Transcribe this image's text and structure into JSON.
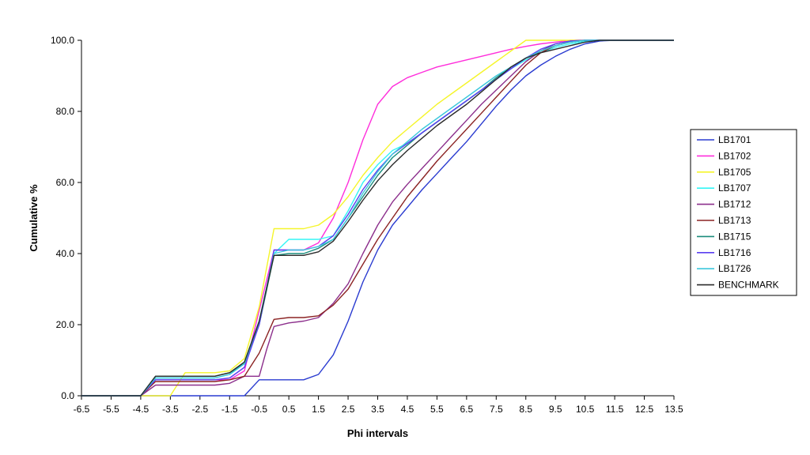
{
  "chart_data": {
    "type": "line",
    "title": "",
    "xlabel": "Phi intervals",
    "ylabel": "Cumulative %",
    "xlim": [
      -6.5,
      13.5
    ],
    "ylim": [
      0,
      100
    ],
    "x_ticks": [
      -6.5,
      -5.5,
      -4.5,
      -3.5,
      -2.5,
      -1.5,
      -0.5,
      0.5,
      1.5,
      2.5,
      3.5,
      4.5,
      5.5,
      6.5,
      7.5,
      8.5,
      9.5,
      10.5,
      11.5,
      12.5,
      13.5
    ],
    "x_tick_labels": [
      "-6.5",
      "-5.5",
      "-4.5",
      "-3.5",
      "-2.5",
      "-1.5",
      "-0.5",
      "0.5",
      "1.5",
      "2.5",
      "3.5",
      "4.5",
      "5.5",
      "6.5",
      "7.5",
      "8.5",
      "9.5",
      "10.5",
      "11.5",
      "12.5",
      "13.5"
    ],
    "y_ticks": [
      0,
      20,
      40,
      60,
      80,
      100
    ],
    "y_tick_labels": [
      "0.0",
      "20.0",
      "40.0",
      "60.0",
      "80.0",
      "100.0"
    ],
    "grid": false,
    "legend_position": "right",
    "series": [
      {
        "name": "LB1701",
        "color": "#2a3bd0",
        "x": [
          -6.5,
          -5,
          -4.5,
          -4,
          -3.5,
          -3,
          -2.5,
          -2,
          -1.5,
          -1,
          -0.5,
          0,
          0.5,
          1,
          1.5,
          2,
          2.5,
          3,
          3.5,
          4,
          4.5,
          5,
          5.5,
          6,
          6.5,
          7,
          7.5,
          8,
          8.5,
          9,
          9.5,
          10,
          10.5,
          11,
          11.5,
          12,
          12.5,
          13,
          13.5
        ],
        "y": [
          0,
          0,
          0,
          0,
          0,
          0,
          0,
          0,
          0,
          0,
          4.5,
          4.5,
          4.5,
          4.5,
          6,
          11.5,
          21,
          32,
          41,
          48,
          53,
          58,
          62.5,
          67,
          71.5,
          76.5,
          81.5,
          86,
          90,
          93,
          95.5,
          97.5,
          99,
          99.8,
          100,
          100,
          100,
          100,
          100
        ]
      },
      {
        "name": "LB1702",
        "color": "#ff2ddb",
        "x": [
          -6.5,
          -4.5,
          -4,
          -3.5,
          -3,
          -2.5,
          -2,
          -1.5,
          -1,
          -0.5,
          0,
          0.5,
          1,
          1.5,
          2,
          2.5,
          3,
          3.5,
          4,
          4.5,
          5,
          5.5,
          6,
          6.5,
          7,
          7.5,
          8,
          8.5,
          9,
          9.5,
          10,
          10.5,
          11,
          11.5,
          12,
          12.5,
          13,
          13.5
        ],
        "y": [
          0,
          0,
          4.5,
          4.5,
          4.5,
          4.5,
          4.5,
          4.5,
          7,
          24,
          41,
          41,
          41,
          43,
          50,
          60,
          72,
          82,
          87,
          89.5,
          91,
          92.5,
          93.5,
          94.5,
          95.5,
          96.5,
          97.5,
          98.3,
          99,
          99.5,
          100,
          100,
          100,
          100,
          100,
          100,
          100,
          100
        ]
      },
      {
        "name": "LB1705",
        "color": "#f5f52a",
        "x": [
          -6.5,
          -4.5,
          -4,
          -3.5,
          -3,
          -2.5,
          -2,
          -1.5,
          -1,
          -0.5,
          0,
          0.5,
          1,
          1.5,
          2,
          2.5,
          3,
          3.5,
          4,
          4.5,
          5,
          5.5,
          6,
          6.5,
          7,
          7.5,
          8,
          8.5,
          9,
          9.5,
          10,
          10.5,
          11,
          11.5,
          12,
          12.5,
          13,
          13.5
        ],
        "y": [
          0,
          0,
          0,
          0,
          6.5,
          6.5,
          6.5,
          7,
          10.5,
          25,
          47,
          47,
          47,
          48,
          51,
          56,
          62,
          67,
          71.5,
          75,
          78.5,
          82,
          85,
          88,
          91,
          94,
          97,
          100,
          100,
          100,
          100,
          100,
          100,
          100,
          100,
          100,
          100,
          100
        ]
      },
      {
        "name": "LB1707",
        "color": "#33f5f5",
        "x": [
          -6.5,
          -4.5,
          -4,
          -3.5,
          -3,
          -2.5,
          -2,
          -1.5,
          -1,
          -0.5,
          0,
          0.5,
          1,
          1.5,
          2,
          2.5,
          3,
          3.5,
          4,
          4.5,
          5,
          5.5,
          6,
          6.5,
          7,
          7.5,
          8,
          8.5,
          9,
          9.5,
          10,
          10.5,
          11,
          11.5,
          12,
          12.5,
          13,
          13.5
        ],
        "y": [
          0,
          0,
          5,
          5,
          5,
          5,
          5,
          6,
          9.5,
          21,
          40,
          44,
          44,
          44,
          45,
          52,
          60,
          65,
          69,
          71,
          74,
          77,
          80,
          83,
          86,
          89,
          92,
          94.5,
          96.5,
          98,
          99,
          99.7,
          100,
          100,
          100,
          100,
          100,
          100
        ]
      },
      {
        "name": "LB1712",
        "color": "#8c2f8c",
        "x": [
          -6.5,
          -4.5,
          -4,
          -3.5,
          -3,
          -2.5,
          -2,
          -1.5,
          -1,
          -0.5,
          -0.25,
          0,
          0.5,
          1,
          1.5,
          2,
          2.5,
          3,
          3.5,
          4,
          4.5,
          5,
          5.5,
          6,
          6.5,
          7,
          7.5,
          8,
          8.5,
          9,
          9.5,
          10,
          10.5,
          11,
          11.5,
          12,
          12.5,
          13,
          13.5
        ],
        "y": [
          0,
          0,
          3,
          3,
          3,
          3,
          3,
          3.5,
          5.5,
          5.5,
          13,
          19.5,
          20.5,
          21,
          22,
          26,
          31.5,
          40,
          48,
          54.5,
          59.5,
          64,
          68.5,
          73,
          77.5,
          82,
          86,
          90,
          94,
          97,
          99,
          99.8,
          100,
          100,
          100,
          100,
          100,
          100,
          100
        ]
      },
      {
        "name": "LB1713",
        "color": "#8b2323",
        "x": [
          -6.5,
          -4.5,
          -4,
          -3.5,
          -3,
          -2.5,
          -2,
          -1.5,
          -1,
          -0.5,
          0,
          0.5,
          1,
          1.5,
          2,
          2.5,
          3,
          3.5,
          4,
          4.5,
          5,
          5.5,
          6,
          6.5,
          7,
          7.5,
          8,
          8.5,
          9,
          9.5,
          10,
          10.5,
          11,
          11.5,
          12,
          12.5,
          13,
          13.5
        ],
        "y": [
          0,
          0,
          4,
          4,
          4,
          4,
          4,
          4.5,
          5.5,
          12,
          21.5,
          22,
          22,
          22.5,
          25.5,
          30,
          37,
          44,
          50,
          56,
          61,
          66,
          70.5,
          75,
          79.5,
          84,
          88.5,
          93,
          96.5,
          98.5,
          99.5,
          100,
          100,
          100,
          100,
          100,
          100,
          100
        ]
      },
      {
        "name": "LB1715",
        "color": "#1c8c7c",
        "x": [
          -6.5,
          -4.5,
          -4,
          -3.5,
          -3,
          -2.5,
          -2,
          -1.5,
          -1,
          -0.5,
          0,
          0.5,
          1,
          1.5,
          2,
          2.5,
          3,
          3.5,
          4,
          4.5,
          5,
          5.5,
          6,
          6.5,
          7,
          7.5,
          8,
          8.5,
          9,
          9.5,
          10,
          10.5,
          11,
          11.5,
          12,
          12.5,
          13,
          13.5
        ],
        "y": [
          0,
          0,
          5.5,
          5.5,
          5.5,
          5.5,
          5.5,
          6.5,
          9,
          20,
          39.5,
          40,
          40,
          41.5,
          44,
          50,
          56,
          62,
          67,
          70.5,
          74,
          77,
          80,
          83,
          86,
          89.5,
          92.5,
          95,
          97,
          98.5,
          99.5,
          100,
          100,
          100,
          100,
          100,
          100,
          100
        ]
      },
      {
        "name": "LB1716",
        "color": "#5a3ff0",
        "x": [
          -6.5,
          -4.5,
          -4,
          -3.5,
          -3,
          -2.5,
          -2,
          -1.5,
          -1,
          -0.5,
          0,
          0.5,
          1,
          1.5,
          2,
          2.5,
          3,
          3.5,
          4,
          4.5,
          5,
          5.5,
          6,
          6.5,
          7,
          7.5,
          8,
          8.5,
          9,
          9.5,
          10,
          10.5,
          11,
          11.5,
          12,
          12.5,
          13,
          13.5
        ],
        "y": [
          0,
          0,
          4.5,
          4.5,
          4.5,
          4.5,
          4.5,
          5,
          8,
          20,
          41,
          41,
          41,
          42,
          45,
          51,
          58,
          63.5,
          68,
          71,
          74,
          77,
          80,
          83,
          86,
          89,
          92,
          95,
          97.5,
          99,
          99.8,
          100,
          100,
          100,
          100,
          100,
          100,
          100
        ]
      },
      {
        "name": "LB1726",
        "color": "#3cc8dc",
        "x": [
          -6.5,
          -4.5,
          -4,
          -3.5,
          -3,
          -2.5,
          -2,
          -1.5,
          -1,
          -0.5,
          0,
          0.5,
          1,
          1.5,
          2,
          2.5,
          3,
          3.5,
          4,
          4.5,
          5,
          5.5,
          6,
          6.5,
          7,
          7.5,
          8,
          8.5,
          9,
          9.5,
          10,
          10.5,
          11,
          11.5,
          12,
          12.5,
          13,
          13.5
        ],
        "y": [
          0,
          0,
          5,
          5,
          5,
          5,
          5,
          6,
          9,
          21,
          40,
          41,
          41,
          42,
          44,
          50,
          57,
          63,
          68,
          71.5,
          75,
          78,
          81,
          84,
          87,
          90,
          92.5,
          95,
          97,
          98.5,
          99.5,
          100,
          100,
          100,
          100,
          100,
          100,
          100
        ]
      },
      {
        "name": "BENCHMARK",
        "color": "#2b2b2b",
        "x": [
          -6.5,
          -4.5,
          -4,
          -3.5,
          -3,
          -2.5,
          -2,
          -1.5,
          -1,
          -0.5,
          0,
          0.5,
          1,
          1.5,
          2,
          2.5,
          3,
          3.5,
          4,
          4.5,
          5,
          5.5,
          6,
          6.5,
          7,
          7.5,
          8,
          8.5,
          9,
          9.5,
          10,
          10.5,
          11,
          11.5,
          12,
          12.5,
          13,
          13.5
        ],
        "y": [
          0,
          0,
          5.5,
          5.5,
          5.5,
          5.5,
          5.5,
          6.5,
          9.5,
          21,
          39.5,
          39.5,
          39.5,
          40.5,
          43.5,
          49,
          55,
          60.5,
          65,
          69,
          72.5,
          76,
          79,
          82,
          85.5,
          89,
          92.5,
          95,
          96.5,
          97.5,
          98.5,
          99.5,
          100,
          100,
          100,
          100,
          100,
          100
        ]
      }
    ]
  }
}
